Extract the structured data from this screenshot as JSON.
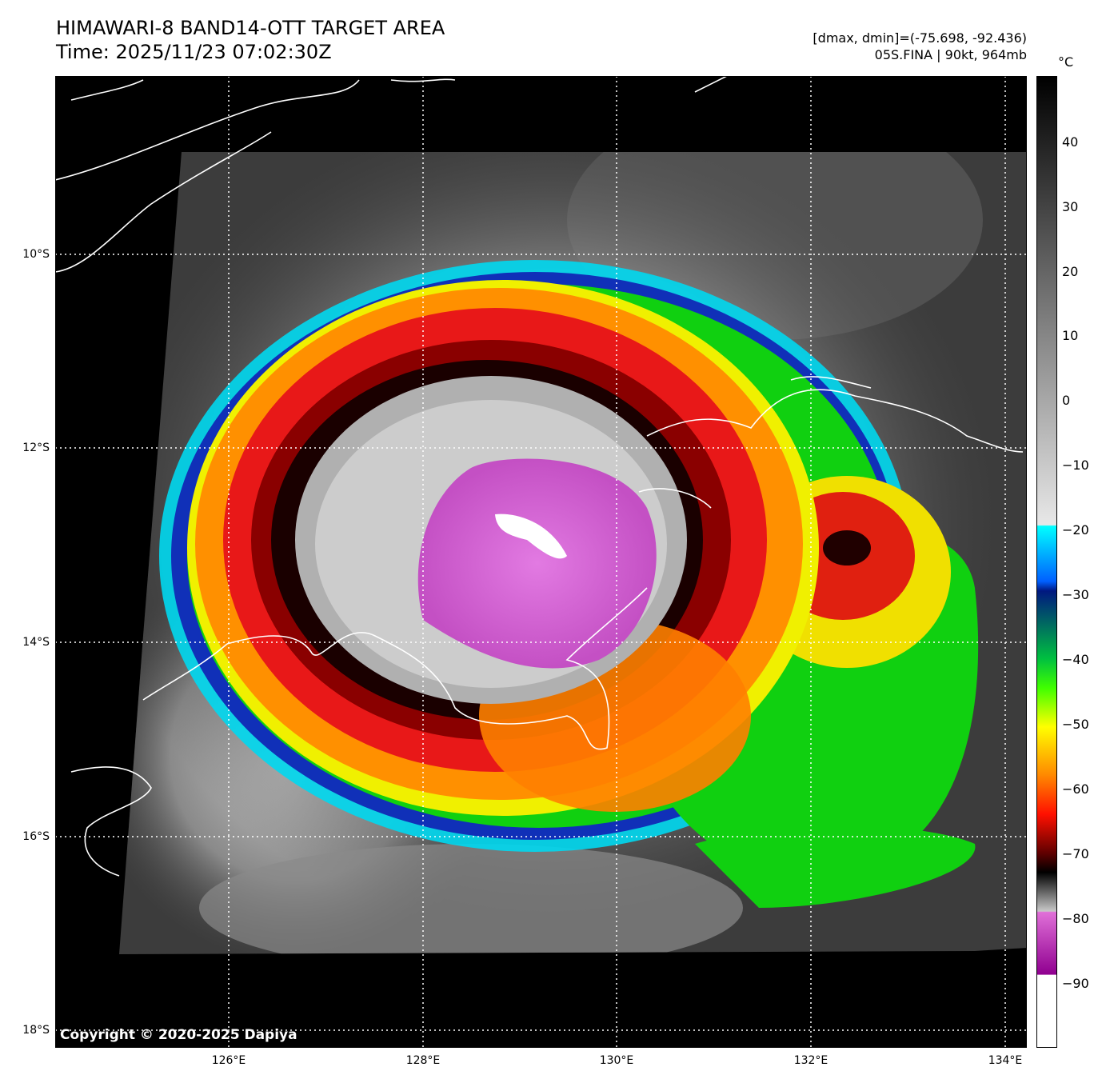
{
  "header": {
    "title_line1": "HIMAWARI-8 BAND14-OTT TARGET AREA",
    "title_line2": "Time: 2025/11/23 07:02:30Z",
    "info_line1": "[dmax, dmin]=(-75.698, -92.436)",
    "info_line2": "05S.FINA | 90kt, 964mb"
  },
  "map": {
    "copyright": "Copyright © 2020-2025 Dapiya",
    "lat_labels": [
      "10°S",
      "12°S",
      "14°S",
      "16°S",
      "18°S"
    ],
    "lon_labels": [
      "126°E",
      "128°E",
      "130°E",
      "132°E",
      "134°E"
    ],
    "colors": {
      "eye": "#d262d2",
      "eyewall_dark": "#1a0000",
      "red": "#e01010",
      "orange": "#ff8800",
      "yellow": "#f0f000",
      "green": "#10e010",
      "blue": "#1028c0",
      "cyan": "#00e8ff",
      "cloud_gray": "#9a9a9a",
      "ocean": "#3a3a3a",
      "coast": "#ffffff",
      "grid": "#ffffff"
    }
  },
  "colorbar": {
    "unit": "°C",
    "ticks": [
      "40",
      "30",
      "20",
      "10",
      "0",
      "−10",
      "−20",
      "−30",
      "−40",
      "−50",
      "−60",
      "−70",
      "−80",
      "−90"
    ]
  }
}
